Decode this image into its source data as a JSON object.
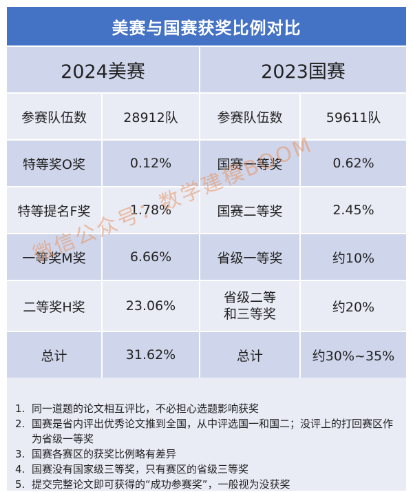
{
  "title": "美赛与国赛获奖比例对比",
  "header": {
    "left": "2024美赛",
    "right": "2023国赛"
  },
  "rows": [
    {
      "l_label": "参赛队伍数",
      "l_value": "28912队",
      "r_label": "参赛队伍数",
      "r_value": "59611队"
    },
    {
      "l_label": "特等奖O奖",
      "l_value": "0.12%",
      "r_label": "国赛一等奖",
      "r_value": "0.62%"
    },
    {
      "l_label": "特等提名F奖",
      "l_value": "1.78%",
      "r_label": "国赛二等奖",
      "r_value": "2.45%"
    },
    {
      "l_label": "一等奖M奖",
      "l_value": "6.66%",
      "r_label": "省级一等奖",
      "r_value": "约10%"
    },
    {
      "l_label": "二等奖H奖",
      "l_value": "23.06%",
      "r_label": "省级二等和三等奖",
      "r_value": "约20%"
    },
    {
      "l_label": "总计",
      "l_value": "31.62%",
      "r_label": "总计",
      "r_value": "约30%~35%"
    }
  ],
  "notes": [
    {
      "num": "1.",
      "text": "同一道题的论文相互评比，不必担心选题影响获奖"
    },
    {
      "num": "2.",
      "text": "国赛是省内评出优秀论文推到全国，从中评选国一和国二；没评上的打回赛区作为省级一等奖"
    },
    {
      "num": "3.",
      "text": "国赛各赛区的获奖比例略有差异"
    },
    {
      "num": "4.",
      "text": "国赛没有国家级三等奖，只有赛区的省级三等奖"
    },
    {
      "num": "5.",
      "text": "提交完整论文即可获得的“成功参赛奖”，一般视为没获奖"
    }
  ],
  "watermark": "微信公众号：数学建模BOOM",
  "colors": {
    "title_bg": "#4472c4",
    "row_dark": "#cfd5ea",
    "row_light": "#e9ebf5",
    "highlight": "#e0242c"
  }
}
